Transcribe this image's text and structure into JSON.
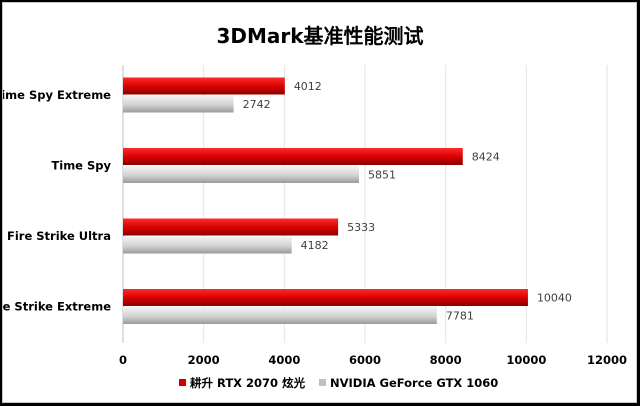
{
  "chart_data": {
    "type": "bar",
    "orientation": "horizontal",
    "title": "3DMark基准性能测试",
    "categories": [
      "Time Spy Extreme",
      "Time Spy",
      "Fire Strike Ultra",
      "Fire Strike Extreme"
    ],
    "series": [
      {
        "name": "耕升 RTX 2070 炫光",
        "color": "#cc0000",
        "values": [
          4012,
          8424,
          5333,
          10040
        ]
      },
      {
        "name": "NVIDIA GeForce GTX 1060",
        "color": "#bfbfbf",
        "values": [
          2742,
          5851,
          4182,
          7781
        ]
      }
    ],
    "xlim": [
      0,
      12000
    ],
    "xticks": [
      0,
      2000,
      4000,
      6000,
      8000,
      10000,
      12000
    ],
    "grid": true,
    "legend_position": "bottom"
  }
}
